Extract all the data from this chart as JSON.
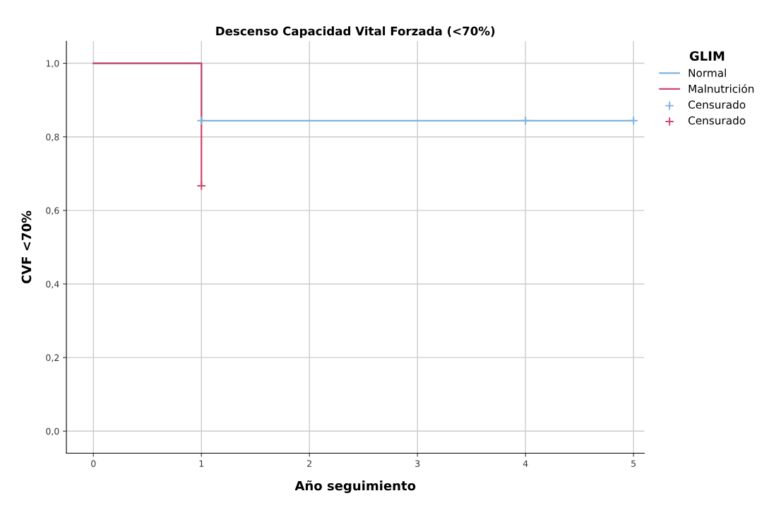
{
  "chart_data": {
    "type": "step",
    "title": "Descenso Capacidad Vital Forzada (<70%)",
    "xlabel": "Año seguimiento",
    "ylabel": "CVF <70%",
    "legend_title": "GLIM",
    "legend": "top right",
    "grid": true,
    "xlim": [
      -0.25,
      5.1
    ],
    "xticks": [
      0,
      1,
      2,
      3,
      4,
      5
    ],
    "ylim": [
      -0.06,
      1.06
    ],
    "yticks": [
      {
        "value": 0,
        "label": "0,0"
      },
      {
        "value": 0.2,
        "label": "0,2"
      },
      {
        "value": 0.4,
        "label": "0,4"
      },
      {
        "value": 0.6,
        "label": "0,6"
      },
      {
        "value": 0.8,
        "label": "0,8"
      },
      {
        "value": 1,
        "label": "1,0"
      }
    ],
    "series": [
      {
        "name": "Normal",
        "color": "#7fb2dc",
        "x": [
          0,
          1,
          5
        ],
        "values": [
          1,
          0.844,
          0.844
        ]
      },
      {
        "name": "Malnutrición",
        "color": "#d0466c",
        "x": [
          0,
          1
        ],
        "values": [
          1,
          0.667
        ]
      },
      {
        "name": "Censurado",
        "type": "scatter",
        "marker": "cross",
        "color": "#7fb2dc",
        "x": [
          1,
          4,
          5
        ],
        "values": [
          0.844,
          0.844,
          0.844
        ]
      },
      {
        "name": "Censurado",
        "type": "scatter",
        "marker": "cross",
        "color": "#d0466c",
        "x": [
          1
        ],
        "values": [
          0.667
        ]
      }
    ]
  }
}
